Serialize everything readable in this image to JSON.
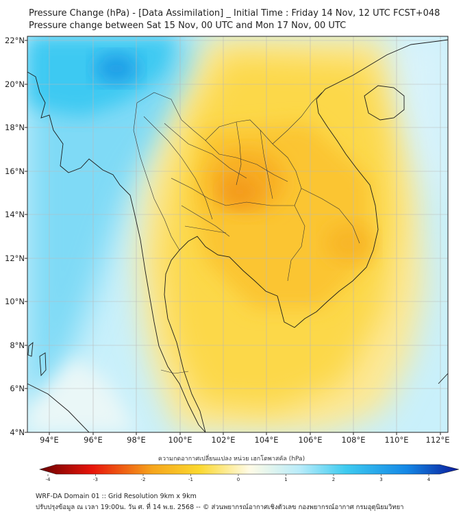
{
  "header": {
    "title": "Pressure Change (hPa) - [Data Assimilation] _ Initial Time : Friday 14 Nov, 12 UTC FCST+048",
    "subtitle": "Pressure change between Sat 15 Nov, 00 UTC and Mon 17 Nov, 00 UTC"
  },
  "map": {
    "lat_labels": [
      "22°N",
      "20°N",
      "18°N",
      "16°N",
      "14°N",
      "12°N",
      "10°N",
      "8°N",
      "6°N",
      "4°N"
    ],
    "lon_labels": [
      "94°E",
      "96°E",
      "98°E",
      "100°E",
      "102°E",
      "104°E",
      "106°E",
      "108°E",
      "110°E",
      "112°E"
    ]
  },
  "colorbar": {
    "title": "ความกดอากาศเปลี่ยนแปลง หน่วย เฮกโตพาสคัล (hPa)",
    "tick_labels": [
      "-4",
      "-3",
      "-2",
      "-1",
      "0",
      "1",
      "2",
      "3",
      "4"
    ],
    "colors": {
      "neg4": "#6a0000",
      "neg3": "#e8140a",
      "neg2": "#f6a61c",
      "neg1": "#fbd82e",
      "zero": "#fffbe6",
      "pos1": "#b9ecfa",
      "pos2": "#3ecbf0",
      "pos3": "#1488e6",
      "pos4": "#0a1a9a"
    }
  },
  "footer": {
    "line1": "WRF-DA Domain 01 :: Grid Resolution 9km x 9km",
    "line2": "ปรับปรุงข้อมูล ณ เวลา 19:00น. วัน ศ. ที่ 14 พ.ย. 2568 -- © ส่วนพยากรณ์อากาศเชิงตัวเลข กองพยากรณ์อากาศ กรมอุตุนิยมวิทยา"
  }
}
